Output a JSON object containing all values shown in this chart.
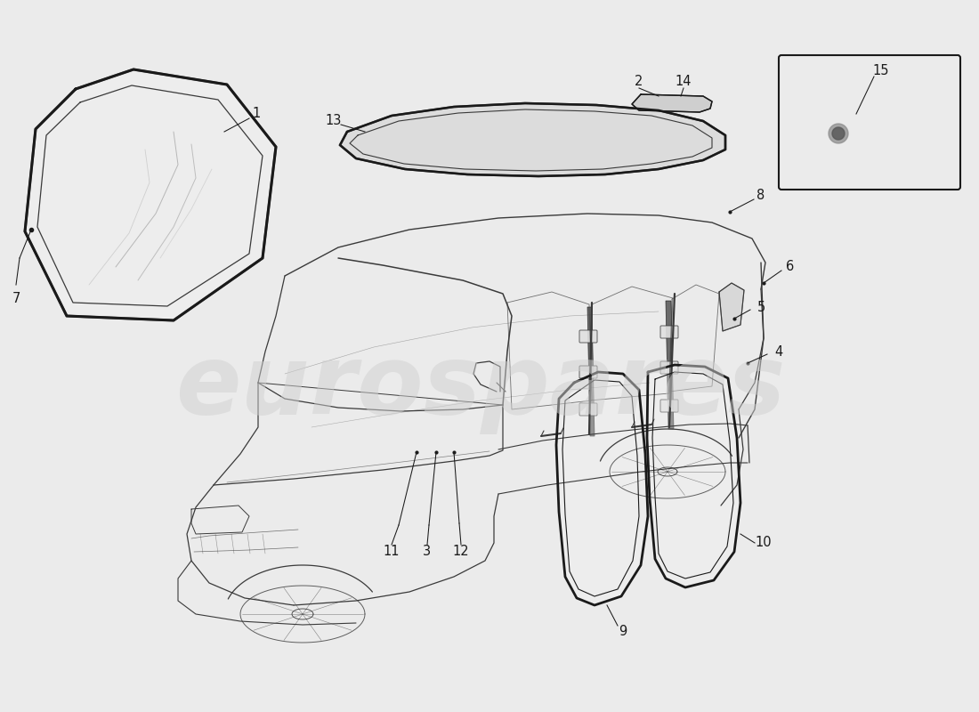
{
  "background_color": "#ebebeb",
  "line_color": "#1a1a1a",
  "sketch_color": "#3a3a3a",
  "light_color": "#888888",
  "watermark_text": "eurospares",
  "watermark_color": "#d0d0d0",
  "watermark_alpha": 0.5,
  "figsize": [
    11.0,
    8.0
  ],
  "dpi": 100
}
